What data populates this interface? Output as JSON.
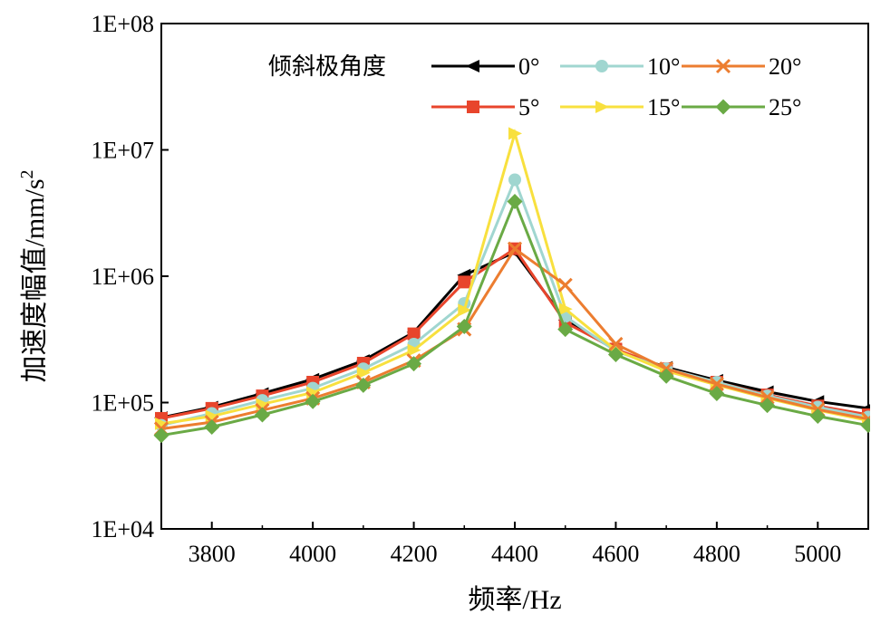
{
  "chart_data": {
    "type": "line",
    "title": "",
    "xlabel": "频率/Hz",
    "ylabel_main": "加速度幅值/mm/s",
    "ylabel_sup": "2",
    "y_scale": "log",
    "xlim": [
      3700,
      5100
    ],
    "ylim": [
      10000,
      100000000
    ],
    "x_ticks": [
      3800,
      4000,
      4200,
      4400,
      4600,
      4800,
      5000
    ],
    "x_tick_labels": [
      "3800",
      "4000",
      "4200",
      "4400",
      "4600",
      "4800",
      "5000"
    ],
    "y_ticks": [
      10000,
      100000,
      1000000,
      10000000,
      100000000
    ],
    "y_tick_labels": [
      "1E+04",
      "1E+05",
      "1E+06",
      "1E+07",
      "1E+08"
    ],
    "grid": false,
    "legend_title": "倾斜极角度",
    "legend_position": "top",
    "x": [
      3700,
      3800,
      3900,
      4000,
      4100,
      4200,
      4300,
      4400,
      4500,
      4600,
      4700,
      4800,
      4900,
      5000,
      5100
    ],
    "series": [
      {
        "name": "0°",
        "color": "#000000",
        "marker": "triangle-left",
        "values": [
          76000,
          92000,
          118000,
          153000,
          215000,
          360000,
          1020000,
          1550000,
          450000,
          260000,
          190000,
          150000,
          122000,
          102000,
          90000
        ]
      },
      {
        "name": "5°",
        "color": "#e8452c",
        "marker": "square",
        "values": [
          75000,
          90000,
          113000,
          145000,
          205000,
          350000,
          900000,
          1650000,
          430000,
          265000,
          185000,
          145000,
          115000,
          94000,
          80000
        ]
      },
      {
        "name": "10°",
        "color": "#a0d6d0",
        "marker": "circle",
        "values": [
          66000,
          82000,
          104000,
          130000,
          185000,
          290000,
          610000,
          5800000,
          480000,
          255000,
          185000,
          145000,
          113000,
          92000,
          77000
        ]
      },
      {
        "name": "15°",
        "color": "#f8e03e",
        "marker": "triangle-right",
        "values": [
          68000,
          78000,
          97000,
          120000,
          172000,
          260000,
          540000,
          13500000,
          550000,
          260000,
          178000,
          138000,
          108000,
          87000,
          72000
        ]
      },
      {
        "name": "20°",
        "color": "#ec7d30",
        "marker": "x",
        "values": [
          62000,
          70000,
          87000,
          108000,
          145000,
          215000,
          380000,
          1650000,
          850000,
          290000,
          185000,
          140000,
          110000,
          88000,
          74000
        ]
      },
      {
        "name": "25°",
        "color": "#6aaa45",
        "marker": "diamond",
        "values": [
          55000,
          64000,
          80000,
          102000,
          137000,
          203000,
          400000,
          3900000,
          380000,
          240000,
          162000,
          118000,
          95000,
          78000,
          66000
        ]
      }
    ]
  }
}
